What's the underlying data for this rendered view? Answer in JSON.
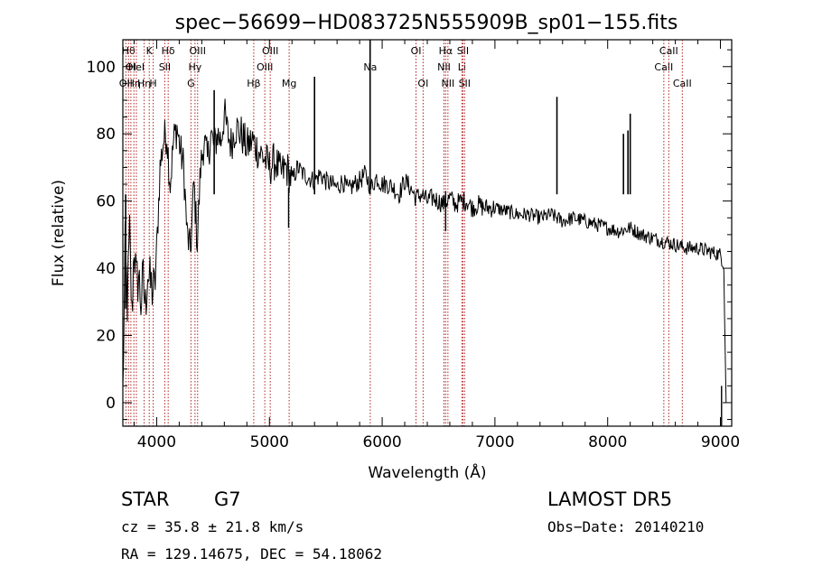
{
  "chart_data": {
    "type": "line",
    "title": "spec−56699−HD083725N555909B_sp01−155.fits",
    "xlabel": "Wavelength (Å)",
    "ylabel": "Flux (relative)",
    "xlim": [
      3700,
      9100
    ],
    "ylim": [
      -7,
      108
    ],
    "xticks": [
      4000,
      5000,
      6000,
      7000,
      8000,
      9000
    ],
    "yticks": [
      0,
      20,
      40,
      60,
      80,
      100
    ],
    "grid": false,
    "series": [
      {
        "x": [
          3700,
          3720,
          3740,
          3760,
          3780,
          3800,
          3820,
          3840,
          3860,
          3880,
          3900,
          3920,
          3940,
          3960,
          3980,
          4000,
          4030,
          4060,
          4090,
          4120,
          4150,
          4180,
          4210,
          4240,
          4270,
          4300,
          4330,
          4360,
          4390,
          4420,
          4450,
          4480,
          4510,
          4540,
          4570,
          4600,
          4630,
          4660,
          4700,
          4750,
          4800,
          4850,
          4900,
          4950,
          5000,
          5050,
          5100,
          5150,
          5200,
          5250,
          5300,
          5350,
          5400,
          5450,
          5500,
          5550,
          5600,
          5650,
          5700,
          5750,
          5800,
          5850,
          5900,
          5950,
          6000,
          6050,
          6100,
          6150,
          6200,
          6250,
          6300,
          6350,
          6400,
          6450,
          6500,
          6550,
          6600,
          6650,
          6700,
          6750,
          6800,
          6850,
          6900,
          6950,
          7000,
          7100,
          7200,
          7300,
          7400,
          7500,
          7600,
          7700,
          7800,
          7900,
          8000,
          8100,
          8200,
          8300,
          8400,
          8500,
          8600,
          8700,
          8800,
          8900,
          9000,
          9030,
          9050
        ],
        "y": [
          2,
          45,
          30,
          50,
          25,
          48,
          35,
          38,
          30,
          36,
          28,
          40,
          35,
          34,
          33,
          45,
          70,
          78,
          80,
          65,
          78,
          82,
          75,
          70,
          50,
          45,
          65,
          48,
          70,
          78,
          72,
          80,
          76,
          80,
          78,
          86,
          80,
          77,
          82,
          80,
          76,
          78,
          75,
          73,
          70,
          72,
          68,
          70,
          66,
          70,
          68,
          67,
          66,
          68,
          66,
          65,
          64,
          66,
          63,
          65,
          66,
          68,
          64,
          67,
          65,
          65,
          64,
          62,
          66,
          64,
          61,
          62,
          60,
          61,
          60,
          59,
          61,
          59,
          60,
          60,
          58,
          59,
          58,
          58,
          58,
          57,
          56,
          56,
          55,
          56,
          54,
          55,
          54,
          53,
          52,
          51,
          52,
          50,
          49,
          48,
          47,
          46,
          46,
          45,
          44,
          41,
          0
        ]
      }
    ],
    "spikes": [
      {
        "x": 3725,
        "y": 28
      },
      {
        "x": 4510,
        "y": 93
      },
      {
        "x": 5400,
        "y": 97
      },
      {
        "x": 5893,
        "y": 108
      },
      {
        "x": 7550,
        "y": 91
      },
      {
        "x": 8140,
        "y": 80
      },
      {
        "x": 8180,
        "y": 81
      },
      {
        "x": 8200,
        "y": 86
      }
    ],
    "dips": [
      {
        "x": 5170,
        "y": 52
      },
      {
        "x": 6563,
        "y": 51
      },
      {
        "x": 9010,
        "y": -7
      }
    ],
    "line_markers": [
      {
        "x": 3727,
        "label": "OII",
        "row": 2
      },
      {
        "x": 3750,
        "label": "Hθ",
        "row": 0
      },
      {
        "x": 3771,
        "label": "OI",
        "row": 1
      },
      {
        "x": 3798,
        "label": "Hη",
        "row": 2
      },
      {
        "x": 3820,
        "label": "HeI",
        "row": 1
      },
      {
        "x": 3889,
        "label": "Hη",
        "row": 2
      },
      {
        "x": 3934,
        "label": "K",
        "row": 0
      },
      {
        "x": 3969,
        "label": "H",
        "row": 2
      },
      {
        "x": 4072,
        "label": "SII",
        "row": 1
      },
      {
        "x": 4102,
        "label": "Hδ",
        "row": 0
      },
      {
        "x": 4304,
        "label": "G",
        "row": 2
      },
      {
        "x": 4340,
        "label": "Hγ",
        "row": 1
      },
      {
        "x": 4363,
        "label": "OIII",
        "row": 0
      },
      {
        "x": 4861,
        "label": "Hβ",
        "row": 2
      },
      {
        "x": 4959,
        "label": "OIII",
        "row": 1
      },
      {
        "x": 5007,
        "label": "OIII",
        "row": 0
      },
      {
        "x": 5175,
        "label": "Mg",
        "row": 2
      },
      {
        "x": 5894,
        "label": "Na",
        "row": 1
      },
      {
        "x": 6300,
        "label": "OI",
        "row": 0
      },
      {
        "x": 6363,
        "label": "OI",
        "row": 2
      },
      {
        "x": 6548,
        "label": "NII",
        "row": 1
      },
      {
        "x": 6563,
        "label": "Hα",
        "row": 0
      },
      {
        "x": 6583,
        "label": "NII",
        "row": 2
      },
      {
        "x": 6707,
        "label": "Li",
        "row": 1
      },
      {
        "x": 6716,
        "label": "SII",
        "row": 0
      },
      {
        "x": 6731,
        "label": "SII",
        "row": 2
      },
      {
        "x": 8498,
        "label": "CaII",
        "row": 1
      },
      {
        "x": 8542,
        "label": "CaII",
        "row": 0
      },
      {
        "x": 8662,
        "label": "CaII",
        "row": 2
      }
    ]
  },
  "info": {
    "star_class": "STAR",
    "subclass": "G7",
    "survey": "LAMOST  DR5",
    "cz": "cz = 35.8 ± 21.8 km/s",
    "obs_date": "Obs−Date: 20140210",
    "radec": "RA = 129.14675, DEC =  54.18062"
  },
  "colors": {
    "spectrum": "#000000",
    "marker": "#b22222"
  }
}
